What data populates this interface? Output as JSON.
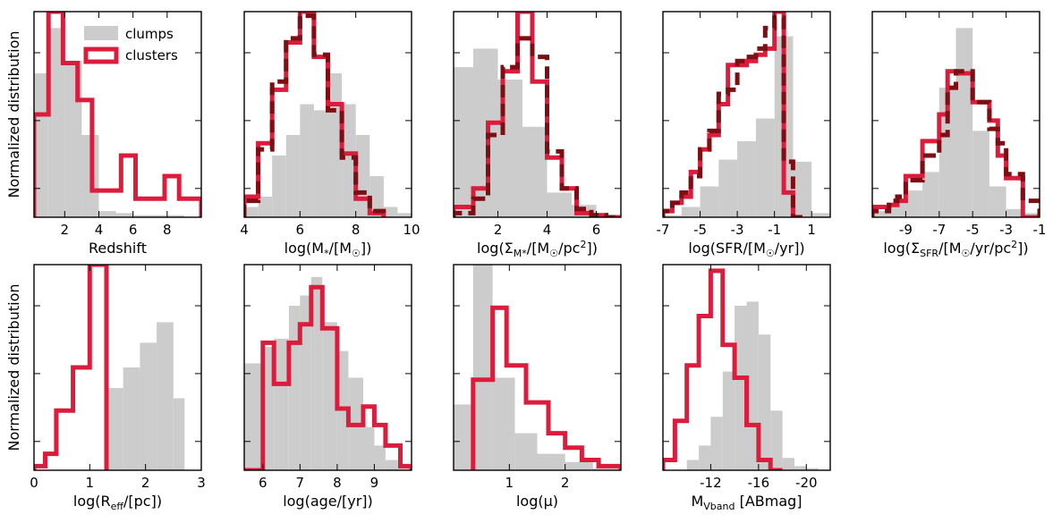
{
  "colors": {
    "clumps": "#cccccc",
    "clusters": "#dc1c3c",
    "clusters_alt": "#7d0e14"
  },
  "legend": {
    "clumps": "clumps",
    "clusters": "clusters"
  },
  "ylabel": "Normalized distribution",
  "chart_data": [
    {
      "type": "bar",
      "id": "redshift",
      "row": 0,
      "col": 0,
      "xlabel": "Redshift",
      "xlim": [
        0.2,
        10
      ],
      "ylim": [
        0,
        1
      ],
      "xticks": [
        2,
        4,
        6,
        8
      ],
      "xticklabels": [
        "2",
        "4",
        "6",
        "8"
      ],
      "yticks": [
        0.14,
        0.47,
        0.8
      ],
      "show_ylabel": true,
      "legend": true,
      "clumps": {
        "edges": [
          0.2,
          1.0,
          2.0,
          3.0,
          4.0,
          5.0,
          6.0,
          7.0,
          8.0,
          9.0,
          10.0
        ],
        "values": [
          0.7,
          0.92,
          0.76,
          0.4,
          0.03,
          0.02,
          0.01,
          0.01,
          0.01,
          0.0
        ]
      },
      "clusters": {
        "edges": [
          0.2,
          1.05,
          1.9,
          2.75,
          3.6,
          4.45,
          5.3,
          6.15,
          7.0,
          7.85,
          8.7,
          9.55,
          10.0
        ],
        "values": [
          0.5,
          1.0,
          0.75,
          0.57,
          0.13,
          0.13,
          0.3,
          0.09,
          0.09,
          0.2,
          0.09,
          0.09
        ]
      }
    },
    {
      "type": "bar",
      "id": "mass",
      "row": 0,
      "col": 1,
      "xlabel": "log(M*/[M☉])",
      "xlim": [
        4,
        10
      ],
      "ylim": [
        0,
        1
      ],
      "xticks": [
        4,
        6,
        8,
        10
      ],
      "xticklabels": [
        "4",
        "6",
        "8",
        "10"
      ],
      "yticks": [
        0.14,
        0.47,
        0.8
      ],
      "clumps": {
        "edges": [
          4.0,
          4.5,
          5.0,
          5.5,
          6.0,
          6.5,
          7.0,
          7.5,
          8.0,
          8.5,
          9.0,
          9.5,
          10.0
        ],
        "values": [
          0.05,
          0.1,
          0.3,
          0.4,
          0.55,
          0.52,
          0.7,
          0.55,
          0.4,
          0.2,
          0.05,
          0.02
        ]
      },
      "clusters": {
        "edges": [
          4.0,
          4.5,
          5.0,
          5.5,
          6.0,
          6.5,
          7.0,
          7.5,
          8.0,
          8.5,
          9.0
        ],
        "values": [
          0.1,
          0.36,
          0.62,
          0.85,
          1.0,
          0.78,
          0.55,
          0.31,
          0.09,
          0.02
        ]
      },
      "clusters_alt": {
        "edges": [
          4.0,
          4.5,
          5.0,
          5.5,
          6.0,
          6.5,
          7.0,
          7.5,
          8.0,
          8.5,
          9.0
        ],
        "values": [
          0.08,
          0.33,
          0.66,
          0.87,
          0.98,
          0.79,
          0.52,
          0.29,
          0.12,
          0.03
        ]
      }
    },
    {
      "type": "bar",
      "id": "sigma_mass",
      "row": 0,
      "col": 2,
      "xlabel": "log(ΣM*/[M☉/pc²])",
      "xlim": [
        0.2,
        7
      ],
      "ylim": [
        0,
        1
      ],
      "xticks": [
        2,
        4,
        6
      ],
      "xticklabels": [
        "2",
        "4",
        "6"
      ],
      "yticks": [
        0.14,
        0.47,
        0.8
      ],
      "clumps": {
        "edges": [
          0.2,
          1.0,
          2.0,
          3.0,
          4.0,
          5.0,
          6.0,
          7.0
        ],
        "values": [
          0.73,
          0.82,
          0.67,
          0.44,
          0.12,
          0.06,
          0.01
        ]
      },
      "clusters": {
        "edges": [
          0.2,
          1.0,
          1.6,
          2.2,
          2.8,
          3.4,
          4.0,
          4.6,
          5.2,
          5.8,
          6.4,
          7.0
        ],
        "values": [
          0.05,
          0.14,
          0.46,
          0.71,
          1.0,
          0.66,
          0.29,
          0.14,
          0.02,
          0.01,
          0.0
        ]
      },
      "clusters_alt": {
        "edges": [
          0.2,
          1.0,
          1.6,
          2.2,
          2.8,
          3.4,
          4.0,
          4.6,
          5.2,
          5.8,
          6.4,
          7.0
        ],
        "values": [
          0.02,
          0.09,
          0.4,
          0.73,
          0.87,
          0.78,
          0.32,
          0.14,
          0.04,
          0.01,
          0.0
        ]
      }
    },
    {
      "type": "bar",
      "id": "sfr",
      "row": 0,
      "col": 3,
      "xlabel": "log(SFR/[M☉/yr])",
      "xlim": [
        -7,
        2
      ],
      "ylim": [
        0,
        1
      ],
      "xticks": [
        -7,
        -5,
        -3,
        -1,
        1
      ],
      "xticklabels": [
        "-7",
        "-5",
        "-3",
        "-1",
        "1"
      ],
      "yticks": [
        0.14,
        0.47,
        0.8
      ],
      "clumps": {
        "edges": [
          -7,
          -6,
          -5,
          -4,
          -3,
          -2,
          -1,
          0,
          1,
          2
        ],
        "values": [
          0.01,
          0.05,
          0.15,
          0.28,
          0.37,
          0.48,
          0.88,
          0.27,
          0.02
        ]
      },
      "clusters": {
        "edges": [
          -7,
          -6.5,
          -6,
          -5.5,
          -5,
          -4.5,
          -4,
          -3.5,
          -3,
          -2.5,
          -2,
          -1.5,
          -1,
          -0.5,
          0,
          0.5
        ],
        "values": [
          0.03,
          0.07,
          0.1,
          0.22,
          0.33,
          0.4,
          0.55,
          0.74,
          0.74,
          0.76,
          0.79,
          0.82,
          1.0,
          0.12,
          0.0
        ]
      },
      "clusters_alt": {
        "edges": [
          -7,
          -6.5,
          -6,
          -5.5,
          -5,
          -4.5,
          -4,
          -3.5,
          -3,
          -2.5,
          -2,
          -1.5,
          -1,
          -0.5,
          0,
          0.5
        ],
        "values": [
          0.03,
          0.07,
          0.12,
          0.2,
          0.33,
          0.42,
          0.6,
          0.62,
          0.76,
          0.78,
          0.82,
          0.92,
          0.97,
          0.27,
          0.0
        ]
      }
    },
    {
      "type": "bar",
      "id": "sigma_sfr",
      "row": 0,
      "col": 4,
      "xlabel": "log(ΣSFR/[M☉/yr/pc²])",
      "xlim": [
        -11,
        -1
      ],
      "ylim": [
        0,
        1
      ],
      "xticks": [
        -9,
        -7,
        -5,
        -3,
        -1
      ],
      "xticklabels": [
        "-9",
        "-7",
        "-5",
        "-3",
        "-1"
      ],
      "yticks": [
        0.14,
        0.47,
        0.8
      ],
      "clumps": {
        "edges": [
          -11,
          -10,
          -9,
          -8,
          -7,
          -6,
          -5,
          -4,
          -3,
          -2,
          -1
        ],
        "values": [
          0.03,
          0.07,
          0.13,
          0.22,
          0.63,
          0.92,
          0.42,
          0.15,
          0.04,
          0.02
        ]
      },
      "clusters": {
        "edges": [
          -11,
          -10,
          -9.5,
          -9,
          -8,
          -7,
          -6.5,
          -6,
          -5,
          -4,
          -3.5,
          -3,
          -2,
          -1
        ],
        "values": [
          0.05,
          0.06,
          0.08,
          0.2,
          0.37,
          0.5,
          0.71,
          0.7,
          0.56,
          0.47,
          0.3,
          0.19,
          0.0
        ]
      },
      "clusters_alt": {
        "edges": [
          -11,
          -10,
          -9.5,
          -9,
          -8,
          -7,
          -6.5,
          -6,
          -5,
          -4,
          -3.5,
          -3,
          -2,
          -1
        ],
        "values": [
          0.03,
          0.08,
          0.1,
          0.18,
          0.3,
          0.4,
          0.63,
          0.71,
          0.56,
          0.43,
          0.36,
          0.21,
          0.08
        ]
      }
    },
    {
      "type": "bar",
      "id": "reff",
      "row": 1,
      "col": 0,
      "xlabel": "log(Reff/[pc])",
      "xlim": [
        0,
        3
      ],
      "ylim": [
        0,
        1
      ],
      "xticks": [
        0,
        1,
        2,
        3
      ],
      "xticklabels": [
        "0",
        "1",
        "2",
        "3"
      ],
      "yticks": [
        0.14,
        0.47,
        0.8
      ],
      "show_ylabel": true,
      "clumps": {
        "edges": [
          1.3,
          1.6,
          1.9,
          2.2,
          2.5,
          2.7
        ],
        "values": [
          0.4,
          0.5,
          0.62,
          0.72,
          0.35
        ]
      },
      "clusters": {
        "edges": [
          0,
          0.2,
          0.4,
          0.7,
          1.0,
          1.3
        ],
        "values": [
          0.02,
          0.08,
          0.29,
          0.5,
          1.0
        ]
      }
    },
    {
      "type": "bar",
      "id": "age",
      "row": 1,
      "col": 1,
      "xlabel": "log(age/[yr])",
      "xlim": [
        5.5,
        10
      ],
      "ylim": [
        0,
        1
      ],
      "xticks": [
        6,
        7,
        8,
        9
      ],
      "xticklabels": [
        "6",
        "7",
        "8",
        "9"
      ],
      "yticks": [
        0.14,
        0.47,
        0.8
      ],
      "clumps": {
        "edges": [
          5.5,
          6.0,
          6.3,
          6.7,
          7.0,
          7.3,
          7.6,
          8.0,
          8.3,
          8.7,
          9.0,
          9.3,
          9.7,
          10.0
        ],
        "values": [
          0.52,
          0.6,
          0.64,
          0.8,
          0.85,
          0.94,
          0.72,
          0.58,
          0.45,
          0.21,
          0.12,
          0.05,
          0.02
        ]
      },
      "clusters": {
        "edges": [
          5.5,
          6.0,
          6.3,
          6.7,
          7.0,
          7.3,
          7.6,
          8.0,
          8.3,
          8.7,
          9.0,
          9.3,
          9.7,
          10.0
        ],
        "values": [
          0.0,
          0.62,
          0.42,
          0.62,
          0.71,
          0.89,
          0.69,
          0.3,
          0.22,
          0.31,
          0.22,
          0.12,
          0.02
        ]
      }
    },
    {
      "type": "bar",
      "id": "mu",
      "row": 1,
      "col": 2,
      "xlabel": "log(μ)",
      "xlim": [
        0,
        3
      ],
      "ylim": [
        0,
        1
      ],
      "xticks": [
        1,
        2
      ],
      "xticklabels": [
        "1",
        "2"
      ],
      "yticks": [
        0.14,
        0.47,
        0.8
      ],
      "clumps": {
        "edges": [
          0,
          0.35,
          0.7,
          1.1,
          1.5,
          2.0,
          2.5,
          3.0
        ],
        "values": [
          0.32,
          1.0,
          0.45,
          0.18,
          0.08,
          0.04,
          0.01
        ]
      },
      "clusters": {
        "edges": [
          0.35,
          0.7,
          0.95,
          1.3,
          1.7,
          2.0,
          2.3,
          2.6,
          3.0
        ],
        "values": [
          0.44,
          0.79,
          0.51,
          0.33,
          0.18,
          0.11,
          0.05,
          0.02
        ]
      }
    },
    {
      "type": "bar",
      "id": "mv",
      "row": 1,
      "col": 3,
      "xlabel": "MVband [ABmag]",
      "xlim": [
        -8,
        -22
      ],
      "ylim": [
        0,
        1
      ],
      "xticks": [
        -12,
        -16,
        -20
      ],
      "xticklabels": [
        "-12",
        "-16",
        "-20"
      ],
      "yticks": [
        0.14,
        0.47,
        0.8
      ],
      "clumps": {
        "edges": [
          -10,
          -11,
          -12,
          -13,
          -14,
          -15,
          -16,
          -17,
          -18,
          -19,
          -20,
          -21
        ],
        "values": [
          0.05,
          0.12,
          0.26,
          0.48,
          0.8,
          0.82,
          0.66,
          0.29,
          0.06,
          0.02,
          0.01
        ]
      },
      "clusters": {
        "edges": [
          -8,
          -9,
          -10,
          -11,
          -12,
          -13,
          -14,
          -15,
          -16,
          -17,
          -18
        ],
        "values": [
          0.05,
          0.24,
          0.51,
          0.75,
          0.97,
          0.61,
          0.45,
          0.22,
          0.05,
          0.0
        ]
      }
    }
  ]
}
